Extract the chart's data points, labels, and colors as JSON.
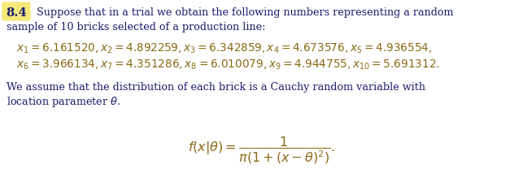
{
  "section_number": "8.4",
  "bg_color": "#ffffff",
  "highlight_color": "#f5e97a",
  "text_color": "#1a1a6e",
  "math_color": "#8B6914",
  "body_text_1": "Suppose that in a trial we obtain the following numbers representing a random",
  "body_text_2": "sample of 10 bricks selected of a production line:",
  "para_text_1": "We assume that the distribution of each brick is a Cauchy random variable with",
  "para_text_2": "location parameter ",
  "figsize": [
    6.43,
    2.29
  ],
  "dpi": 100,
  "fs_body": 9.2,
  "fs_math": 9.8,
  "fs_formula": 11.5
}
